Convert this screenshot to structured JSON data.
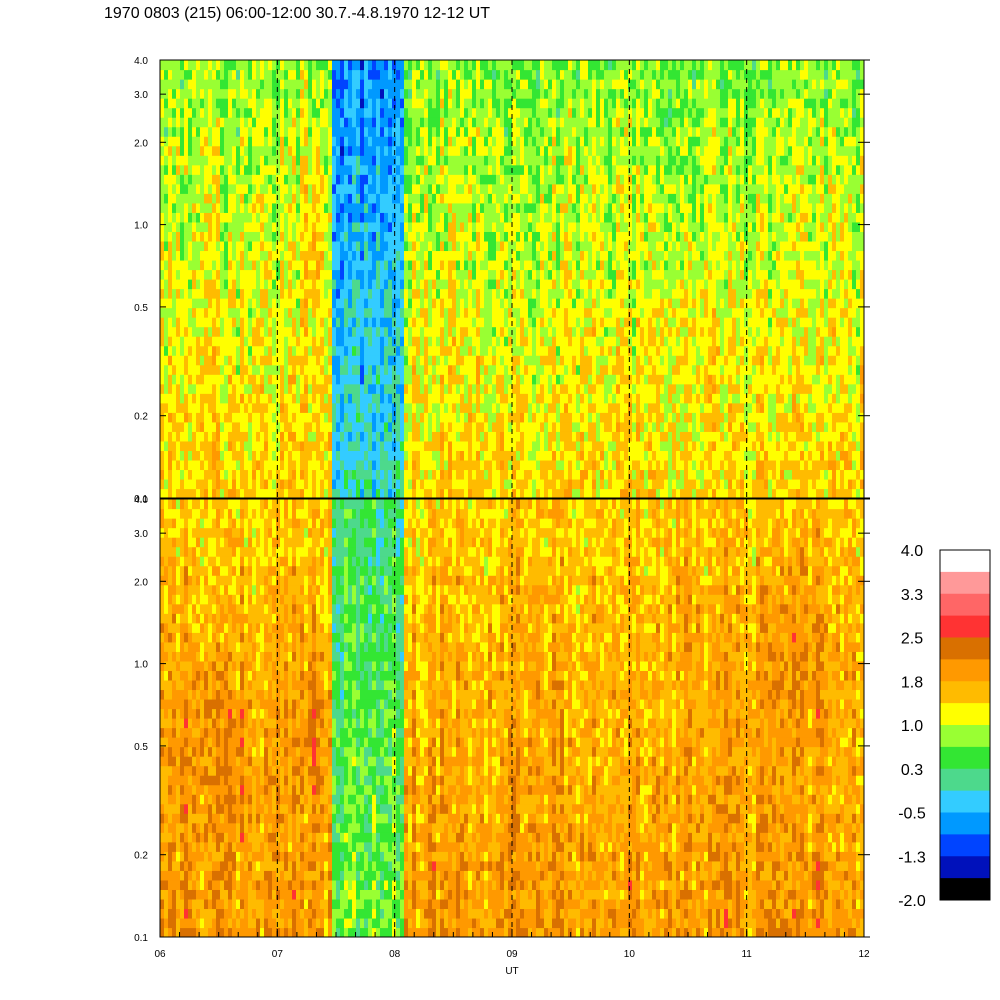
{
  "title": "1970 0803 (215) 06:00-12:00 30.7.-4.8.1970  12-12 UT",
  "chart_data": {
    "type": "heatmap",
    "xlabel": "UT",
    "x_ticks": [
      "06",
      "07",
      "08",
      "09",
      "10",
      "11",
      "12"
    ],
    "xlim": [
      6,
      12
    ],
    "y_scale": "log",
    "ylim": [
      0.1,
      4.0
    ],
    "y_ticks": [
      "0.1",
      "0.2",
      "0.5",
      "1.0",
      "2.0",
      "3.0",
      "4.0"
    ],
    "panels": [
      {
        "name": "upper",
        "y_ticks": [
          "0.1",
          "0.2",
          "0.5",
          "1.0",
          "2.0",
          "3.0",
          "4.0"
        ]
      },
      {
        "name": "lower",
        "y_ticks": [
          "0.1",
          "0.2",
          "0.5",
          "1.0",
          "2.0",
          "3.0",
          "4.0"
        ]
      }
    ],
    "hour_markers": [
      7,
      8,
      9,
      10,
      11
    ],
    "colorbar": {
      "labels": [
        "4.0",
        "3.3",
        "2.5",
        "1.8",
        "1.0",
        "0.3",
        "-0.5",
        "-1.3",
        "-2.0"
      ],
      "colors": [
        "#ffffff",
        "#ff9999",
        "#ff6666",
        "#ff3333",
        "#d97000",
        "#ff9900",
        "#ffbb00",
        "#ffff00",
        "#99ff33",
        "#33e633",
        "#4dd98c",
        "#33ccff",
        "#0099ff",
        "#0044ff",
        "#0011bb",
        "#000000"
      ]
    }
  }
}
